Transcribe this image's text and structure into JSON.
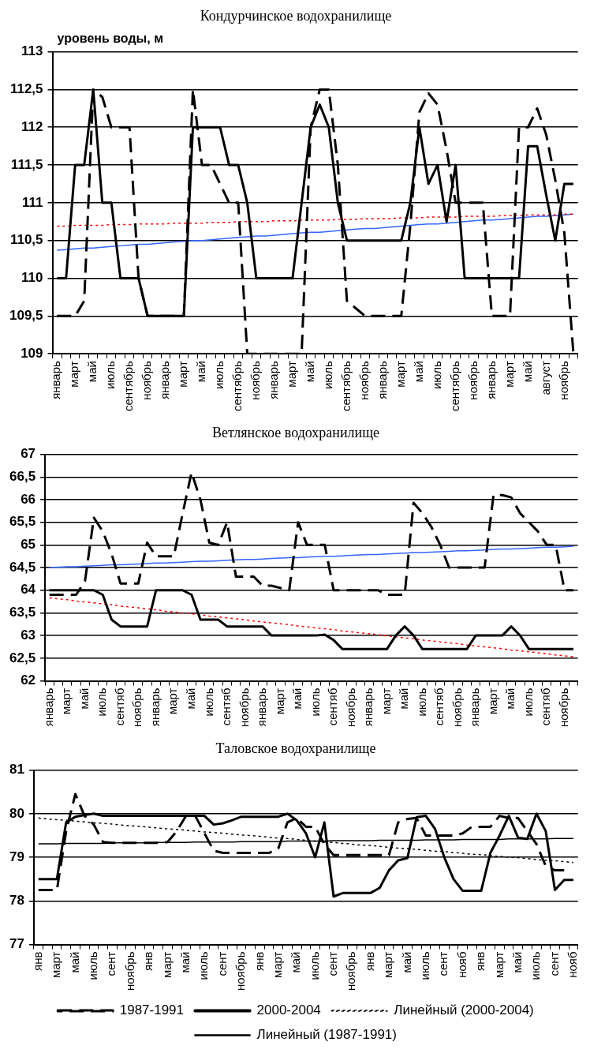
{
  "chart_data": [
    {
      "type": "line",
      "title": "Кондурчинское водохранилище",
      "ylabel": "уровень воды, м",
      "categories": [
        "январь",
        null,
        "март",
        null,
        "май",
        null,
        "июль",
        null,
        "сентябрь",
        null,
        "ноябрь",
        null,
        "январь",
        null,
        "март",
        null,
        "май",
        null,
        "июль",
        null,
        "сентябрь",
        null,
        "ноябрь",
        null,
        "январь",
        null,
        "март",
        null,
        "май",
        null,
        "июль",
        null,
        "сентябрь",
        null,
        "ноябрь",
        null,
        "январь",
        null,
        "март",
        null,
        "май",
        null,
        "июль",
        null,
        "сентябрь",
        null,
        "ноябрь",
        null,
        "январь",
        null,
        "март",
        null,
        "май",
        null,
        "август",
        null,
        "ноябрь",
        null
      ],
      "series": [
        {
          "color": "#000000",
          "line_style": "dashed",
          "values": [
            109.5,
            109.5,
            109.5,
            109.7,
            112.5,
            112.4,
            112,
            112,
            112,
            110,
            109.5,
            109.5,
            109.5,
            109.5,
            109.5,
            112.5,
            111.5,
            111.5,
            111.25,
            111,
            111,
            109,
            109,
            109,
            109,
            109,
            109,
            109,
            112,
            112.5,
            112.5,
            111.5,
            109.7,
            109.6,
            109.5,
            109.5,
            109.5,
            109.5,
            109.5,
            110.7,
            112.2,
            112.45,
            112.3,
            111.7,
            111,
            111,
            111,
            111,
            109.5,
            109.5,
            109.5,
            112,
            112,
            112.25,
            111.9,
            111.3,
            110.6,
            109
          ]
        },
        {
          "color": "#000000",
          "line_style": "solid",
          "values": [
            110,
            110,
            111.5,
            111.5,
            112.5,
            111,
            111,
            110,
            110,
            110,
            109.5,
            109.5,
            109.5,
            109.5,
            109.5,
            112,
            112,
            112,
            112,
            111.5,
            111.5,
            111,
            110,
            110,
            110,
            110,
            110,
            111,
            112,
            112.3,
            112,
            111,
            110.5,
            110.5,
            110.5,
            110.5,
            110.5,
            110.5,
            110.5,
            111,
            112,
            111.25,
            111.5,
            110.75,
            111.5,
            110,
            110,
            110,
            110,
            110,
            110,
            110,
            111.75,
            111.75,
            111.1,
            110.5,
            111.25,
            111.25
          ]
        },
        {
          "color": "#ff0000",
          "line_style": "dotted",
          "values": [
            110.69,
            110.69,
            110.7,
            110.7,
            110.7,
            110.7,
            110.71,
            110.71,
            110.71,
            110.72,
            110.72,
            110.72,
            110.72,
            110.73,
            110.73,
            110.73,
            110.73,
            110.74,
            110.74,
            110.74,
            110.75,
            110.75,
            110.75,
            110.75,
            110.76,
            110.76,
            110.76,
            110.77,
            110.77,
            110.77,
            110.77,
            110.78,
            110.78,
            110.78,
            110.79,
            110.79,
            110.79,
            110.79,
            110.8,
            110.8,
            110.8,
            110.81,
            110.81,
            110.81,
            110.81,
            110.82,
            110.82,
            110.82,
            110.82,
            110.83,
            110.83,
            110.83,
            110.84,
            110.84,
            110.84,
            110.84,
            110.85,
            110.85
          ]
        },
        {
          "color": "#3366ff",
          "line_style": "solid",
          "values": [
            110.37,
            110.38,
            110.39,
            110.4,
            110.4,
            110.41,
            110.42,
            110.43,
            110.44,
            110.45,
            110.45,
            110.46,
            110.47,
            110.48,
            110.49,
            110.5,
            110.5,
            110.51,
            110.52,
            110.53,
            110.54,
            110.55,
            110.56,
            110.56,
            110.57,
            110.58,
            110.59,
            110.6,
            110.61,
            110.61,
            110.62,
            110.63,
            110.64,
            110.65,
            110.66,
            110.66,
            110.67,
            110.68,
            110.69,
            110.7,
            110.71,
            110.72,
            110.72,
            110.73,
            110.74,
            110.75,
            110.76,
            110.77,
            110.77,
            110.78,
            110.79,
            110.8,
            110.81,
            110.82,
            110.82,
            110.83,
            110.84,
            110.85
          ]
        }
      ],
      "ylim": [
        109,
        113
      ],
      "yticks": [
        109,
        {
          "value": 109.5,
          "label": "109,5"
        },
        110,
        {
          "value": 110.5,
          "label": "110,5"
        },
        111,
        {
          "value": 111.5,
          "label": "111,5"
        },
        112,
        {
          "value": 112.5,
          "label": "112,5"
        },
        113
      ],
      "grid": "y",
      "marker": "none"
    },
    {
      "type": "line",
      "title": "Ветлянское водохранилище",
      "categories": [
        "январь",
        null,
        "март",
        null,
        "май",
        null,
        "июль",
        null,
        "сентяб",
        null,
        "ноябрь",
        null,
        "январь",
        null,
        "март",
        null,
        "май",
        null,
        "июль",
        null,
        "сентяб",
        null,
        "ноябрь",
        null,
        "январь",
        null,
        "март",
        null,
        "май",
        null,
        "июль",
        null,
        "сентяб",
        null,
        "ноябрь",
        null,
        "январь",
        null,
        "март",
        null,
        "май",
        null,
        "июль",
        null,
        "сентяб",
        null,
        "ноябрь",
        null,
        "январь",
        null,
        "март",
        null,
        "май",
        null,
        "июль",
        null,
        "сентяб",
        null,
        "ноябрь",
        null
      ],
      "series": [
        {
          "color": "#000000",
          "line_style": "dashed",
          "values": [
            63.9,
            63.9,
            63.9,
            63.9,
            64.2,
            65.6,
            65.3,
            64.8,
            64.15,
            64.15,
            64.15,
            65.05,
            64.75,
            64.75,
            64.75,
            65.7,
            66.6,
            66,
            65.05,
            65,
            65.5,
            64.3,
            64.3,
            64.3,
            64.1,
            64.1,
            64.05,
            64,
            65.5,
            65,
            65,
            65,
            64,
            64,
            64,
            64,
            64,
            64,
            63.9,
            63.9,
            63.9,
            65.93,
            65.7,
            65.4,
            65,
            64.5,
            64.5,
            64.5,
            64.5,
            64.5,
            66.1,
            66.1,
            66.05,
            65.7,
            65.5,
            65.3,
            65,
            65,
            64,
            64
          ]
        },
        {
          "color": "#000000",
          "line_style": "solid",
          "values": [
            64,
            64,
            64,
            64,
            64,
            64,
            63.9,
            63.35,
            63.2,
            63.2,
            63.2,
            63.2,
            64,
            64,
            64,
            64,
            63.9,
            63.35,
            63.35,
            63.35,
            63.2,
            63.2,
            63.2,
            63.2,
            63.2,
            63,
            63,
            63,
            63,
            63,
            63,
            63.02,
            62.9,
            62.7,
            62.7,
            62.7,
            62.7,
            62.7,
            62.7,
            63,
            63.2,
            63,
            62.7,
            62.7,
            62.7,
            62.7,
            62.7,
            62.7,
            63,
            63,
            63,
            63,
            63.2,
            63,
            62.7,
            62.7,
            62.7,
            62.7,
            62.7,
            62.7
          ]
        },
        {
          "color": "#ff0000",
          "line_style": "dotted",
          "values": [
            63.83,
            63.81,
            63.79,
            63.76,
            63.74,
            63.72,
            63.7,
            63.68,
            63.65,
            63.63,
            63.61,
            63.59,
            63.57,
            63.54,
            63.52,
            63.5,
            63.48,
            63.46,
            63.43,
            63.41,
            63.39,
            63.37,
            63.35,
            63.32,
            63.3,
            63.28,
            63.26,
            63.24,
            63.21,
            63.19,
            63.17,
            63.15,
            63.13,
            63.1,
            63.08,
            63.06,
            63.04,
            63.02,
            62.99,
            62.97,
            62.95,
            62.93,
            62.9,
            62.88,
            62.86,
            62.84,
            62.82,
            62.79,
            62.77,
            62.75,
            62.73,
            62.71,
            62.68,
            62.66,
            62.64,
            62.62,
            62.6,
            62.57,
            62.55,
            62.53
          ]
        },
        {
          "color": "#3366ff",
          "line_style": "solid",
          "values": [
            64.5,
            64.51,
            64.52,
            64.52,
            64.53,
            64.54,
            64.55,
            64.56,
            64.56,
            64.57,
            64.58,
            64.59,
            64.6,
            64.6,
            64.61,
            64.62,
            64.63,
            64.64,
            64.64,
            64.65,
            64.66,
            64.67,
            64.68,
            64.68,
            64.69,
            64.7,
            64.71,
            64.72,
            64.72,
            64.73,
            64.74,
            64.75,
            64.75,
            64.76,
            64.77,
            64.78,
            64.79,
            64.79,
            64.8,
            64.81,
            64.82,
            64.83,
            64.83,
            64.84,
            64.85,
            64.86,
            64.87,
            64.87,
            64.88,
            64.89,
            64.9,
            64.91,
            64.91,
            64.92,
            64.93,
            64.94,
            64.95,
            64.95,
            64.96,
            64.97
          ]
        }
      ],
      "ylim": [
        62,
        67
      ],
      "yticks": [
        62,
        {
          "value": 62.5,
          "label": "62,5"
        },
        63,
        {
          "value": 63.5,
          "label": "63,5"
        },
        64,
        {
          "value": 64.5,
          "label": "64,5"
        },
        65,
        {
          "value": 65.5,
          "label": "65,5"
        },
        66,
        {
          "value": 66.5,
          "label": "66,5"
        },
        67
      ],
      "grid": "y",
      "marker": "none"
    },
    {
      "type": "line",
      "title": "Таловское водохранилище",
      "categories": [
        "янв",
        null,
        "март",
        null,
        "май",
        null,
        "июль",
        null,
        "сент",
        null,
        "ноябрь",
        null,
        "янв",
        null,
        "март",
        null,
        "май",
        null,
        "июль",
        null,
        "сент",
        null,
        "ноябрь",
        null,
        "янв",
        null,
        "март",
        null,
        "май",
        null,
        "июль",
        null,
        "сент",
        null,
        "ноябрь",
        null,
        "янв",
        null,
        "март",
        null,
        "май",
        null,
        "июль",
        null,
        "сент",
        null,
        "нояб",
        null,
        "янв",
        null,
        "март",
        null,
        "май",
        null,
        "июль",
        null,
        "сент",
        null,
        "нояб"
      ],
      "series": [
        {
          "name": "1987-1991",
          "color": "#000000",
          "line_style": "dashed",
          "values": [
            78.25,
            78.25,
            78.25,
            79.6,
            80.45,
            79.95,
            79.75,
            79.35,
            79.33,
            79.33,
            79.33,
            79.33,
            79.33,
            79.33,
            79.35,
            79.6,
            79.95,
            79.95,
            79.55,
            79.15,
            79.1,
            79.1,
            79.1,
            79.1,
            79.1,
            79.1,
            79.2,
            79.8,
            79.9,
            79.7,
            79.7,
            79.3,
            79.05,
            79.05,
            79.05,
            79.05,
            79.05,
            79.05,
            79.05,
            79.8,
            79.88,
            79.9,
            79.5,
            79.5,
            79.5,
            79.5,
            79.55,
            79.7,
            79.7,
            79.7,
            79.95,
            79.9,
            79.9,
            79.6,
            79.3,
            78.8,
            78.7,
            78.7,
            null
          ]
        },
        {
          "name": "2000-2004",
          "color": "#000000",
          "line_style": "solid",
          "values": [
            78.5,
            78.5,
            78.5,
            79.8,
            79.93,
            79.97,
            80,
            79.95,
            79.95,
            79.95,
            79.95,
            79.95,
            79.95,
            79.95,
            79.95,
            79.95,
            79.95,
            79.95,
            79.95,
            79.75,
            79.78,
            79.85,
            79.93,
            79.93,
            79.93,
            79.93,
            79.93,
            80,
            79.85,
            79.55,
            79,
            79.8,
            78.1,
            78.18,
            78.18,
            78.18,
            78.18,
            78.3,
            78.7,
            78.93,
            78.98,
            79.92,
            79.95,
            79.65,
            79,
            78.5,
            78.23,
            78.23,
            78.23,
            79.1,
            79.5,
            79.95,
            79.45,
            79.42,
            80,
            79.6,
            78.25,
            78.48,
            78.48
          ]
        },
        {
          "name": "Линейный (2000-2004)",
          "color": "#000000",
          "line_style": "dotted",
          "values": [
            79.9,
            79.88,
            79.86,
            79.85,
            79.83,
            79.81,
            79.79,
            79.78,
            79.76,
            79.74,
            79.72,
            79.71,
            79.69,
            79.67,
            79.65,
            79.64,
            79.62,
            79.6,
            79.58,
            79.57,
            79.55,
            79.53,
            79.51,
            79.5,
            79.48,
            79.46,
            79.44,
            79.43,
            79.41,
            79.39,
            79.37,
            79.35,
            79.34,
            79.32,
            79.3,
            79.28,
            79.27,
            79.25,
            79.23,
            79.21,
            79.2,
            79.18,
            79.16,
            79.14,
            79.13,
            79.11,
            79.09,
            79.07,
            79.06,
            79.04,
            79.02,
            79,
            78.99,
            78.97,
            78.95,
            78.93,
            78.92,
            78.9,
            78.88
          ]
        },
        {
          "name": "Линейный (1987-1991)",
          "color": "#000000",
          "line_style": "solid",
          "values": [
            79.31,
            79.31,
            79.31,
            79.32,
            79.32,
            79.32,
            79.32,
            79.32,
            79.33,
            79.33,
            79.33,
            79.33,
            79.33,
            79.34,
            79.34,
            79.34,
            79.34,
            79.35,
            79.35,
            79.35,
            79.35,
            79.35,
            79.36,
            79.36,
            79.36,
            79.36,
            79.36,
            79.37,
            79.37,
            79.37,
            79.37,
            79.37,
            79.38,
            79.38,
            79.38,
            79.38,
            79.38,
            79.39,
            79.39,
            79.39,
            79.39,
            79.39,
            79.4,
            79.4,
            79.4,
            79.4,
            79.41,
            79.41,
            79.41,
            79.41,
            79.41,
            79.42,
            79.42,
            79.42,
            79.42,
            79.42,
            79.43,
            79.43,
            79.43
          ]
        }
      ],
      "ylim": [
        77,
        81
      ],
      "yticks": [
        77,
        78,
        79,
        80,
        81
      ],
      "grid": "y",
      "marker": "none",
      "legend": "bottom"
    }
  ]
}
